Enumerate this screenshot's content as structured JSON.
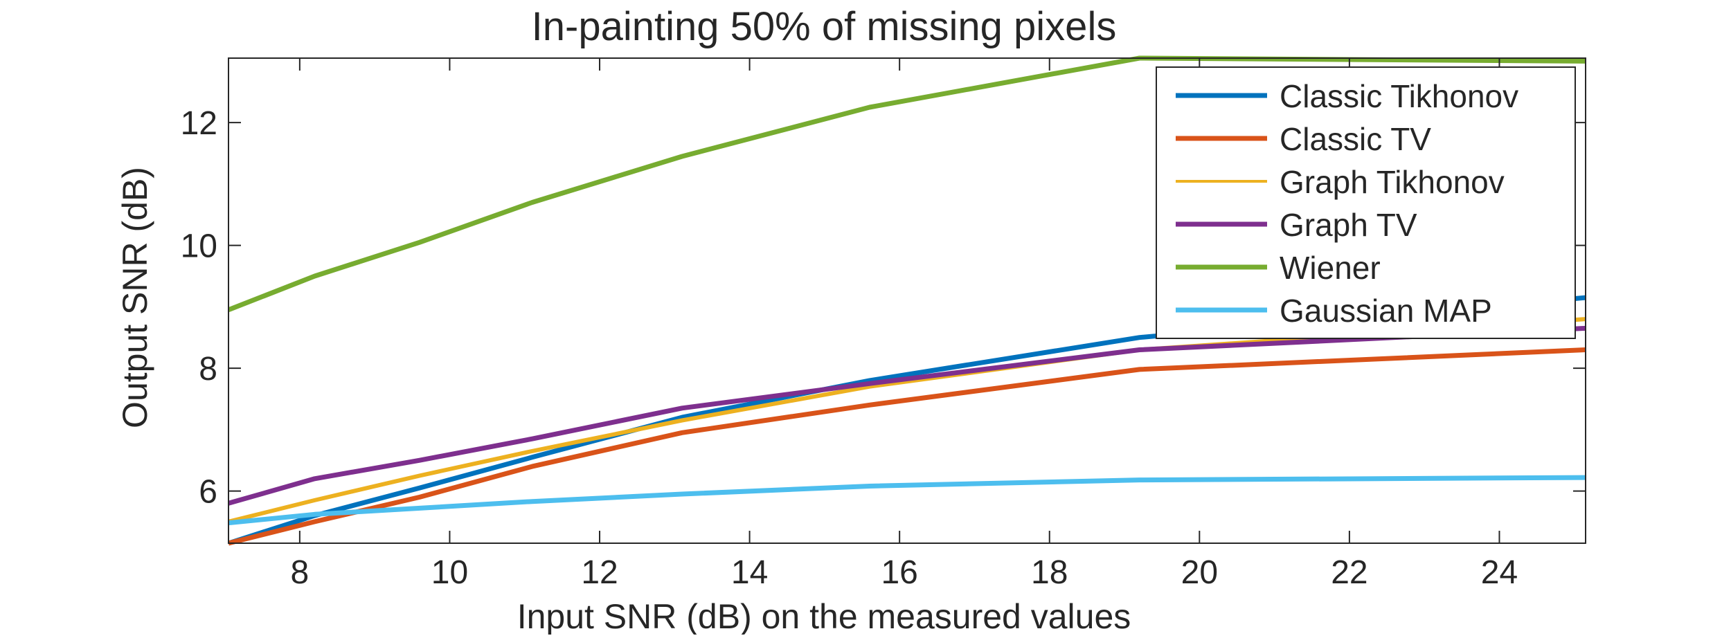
{
  "chart_data": {
    "type": "line",
    "title": "In-painting 50% of missing pixels",
    "xlabel": "Input SNR (dB) on the measured values",
    "ylabel": "Output SNR (dB)",
    "xlim": [
      7.05,
      25.15
    ],
    "ylim": [
      5.15,
      13.05
    ],
    "xticks": [
      8,
      10,
      12,
      14,
      16,
      18,
      20,
      22,
      24
    ],
    "yticks": [
      6,
      8,
      10,
      12
    ],
    "grid": false,
    "legend_position": "top-right",
    "series": [
      {
        "name": "Classic Tikhonov",
        "color": "#0072BD",
        "x": [
          7.05,
          8.2,
          9.6,
          11.1,
          13.1,
          15.6,
          19.2,
          25.15
        ],
        "y": [
          5.15,
          5.6,
          6.05,
          6.55,
          7.2,
          7.8,
          8.5,
          9.15
        ]
      },
      {
        "name": "Classic TV",
        "color": "#D95319",
        "x": [
          7.05,
          8.2,
          9.6,
          11.1,
          13.1,
          15.6,
          19.2,
          25.15
        ],
        "y": [
          5.15,
          5.5,
          5.9,
          6.4,
          6.95,
          7.4,
          7.98,
          8.3
        ]
      },
      {
        "name": "Graph Tikhonov",
        "color": "#EDB120",
        "x": [
          7.05,
          8.2,
          9.6,
          11.1,
          13.1,
          15.6,
          19.2,
          25.15
        ],
        "y": [
          5.5,
          5.85,
          6.25,
          6.65,
          7.15,
          7.7,
          8.3,
          8.8
        ]
      },
      {
        "name": "Graph TV",
        "color": "#7E2F8E",
        "x": [
          7.05,
          8.2,
          9.6,
          11.1,
          13.1,
          15.6,
          19.2,
          25.15
        ],
        "y": [
          5.8,
          6.2,
          6.5,
          6.85,
          7.35,
          7.75,
          8.3,
          8.65
        ]
      },
      {
        "name": "Wiener",
        "color": "#77AC30",
        "x": [
          7.05,
          8.2,
          9.6,
          11.1,
          13.1,
          15.6,
          19.2,
          25.15
        ],
        "y": [
          8.95,
          9.5,
          10.05,
          10.7,
          11.45,
          12.25,
          13.05,
          13.0
        ]
      },
      {
        "name": "Gaussian MAP",
        "color": "#4DBEEE",
        "x": [
          7.05,
          8.2,
          9.6,
          11.1,
          13.1,
          15.6,
          19.2,
          25.15
        ],
        "y": [
          5.48,
          5.62,
          5.72,
          5.83,
          5.95,
          6.08,
          6.18,
          6.22
        ]
      }
    ]
  }
}
